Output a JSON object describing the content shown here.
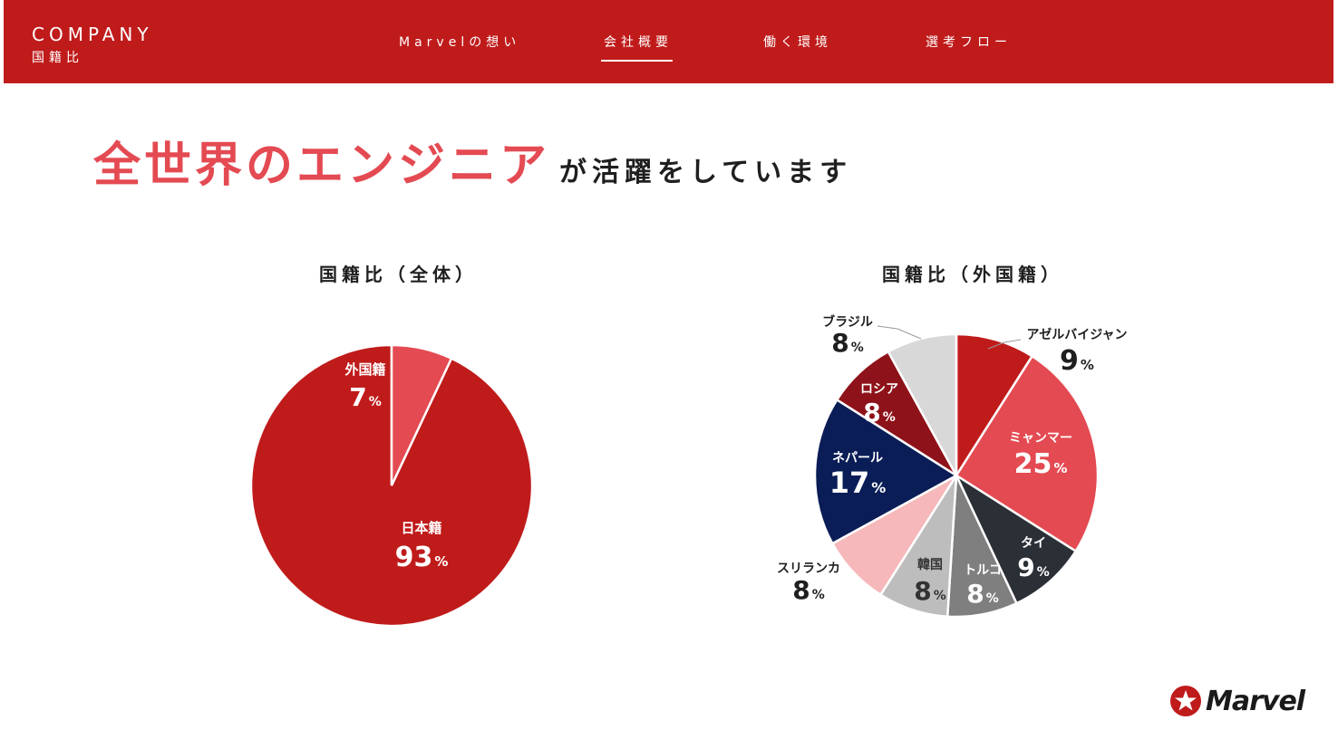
{
  "header": {
    "brand_en": "COMPANY",
    "brand_jp": "国籍比",
    "nav": [
      {
        "label": "Marvelの想い",
        "active": false
      },
      {
        "label": "会社概要",
        "active": true
      },
      {
        "label": "働く環境",
        "active": false
      },
      {
        "label": "選考フロー",
        "active": false
      }
    ]
  },
  "headline": {
    "highlight": "全世界のエンジニア",
    "rest": "が活躍をしています"
  },
  "logo": {
    "text": "Marvel"
  },
  "colors": {
    "brand_red": "#c01b1b",
    "accent_red": "#e44a52",
    "dark_red": "#8e1219",
    "navy": "#0b1d57",
    "charcoal": "#2b2f36",
    "gray": "#7f7f7f",
    "light_gray": "#bdbdbd",
    "pale_gray": "#d8d8d8",
    "pink": "#f6b8bb"
  },
  "chart_data": [
    {
      "type": "pie",
      "title": "国籍比（全体）",
      "unit": "%",
      "slices": [
        {
          "label": "日本籍",
          "value": 93,
          "color": "#c01b1b"
        },
        {
          "label": "外国籍",
          "value": 7,
          "color": "#e44a52"
        }
      ]
    },
    {
      "type": "pie",
      "title": "国籍比（外国籍）",
      "unit": "%",
      "slices": [
        {
          "label": "アゼルバイジャン",
          "value": 9,
          "color": "#c01b1b"
        },
        {
          "label": "ミャンマー",
          "value": 25,
          "color": "#e44a52"
        },
        {
          "label": "タイ",
          "value": 9,
          "color": "#2b2f36"
        },
        {
          "label": "トルコ",
          "value": 8,
          "color": "#7f7f7f"
        },
        {
          "label": "韓国",
          "value": 8,
          "color": "#bdbdbd"
        },
        {
          "label": "スリランカ",
          "value": 8,
          "color": "#f6b8bb"
        },
        {
          "label": "ネパール",
          "value": 17,
          "color": "#0b1d57"
        },
        {
          "label": "ロシア",
          "value": 8,
          "color": "#8e1219"
        },
        {
          "label": "ブラジル",
          "value": 8,
          "color": "#d8d8d8"
        }
      ]
    }
  ]
}
